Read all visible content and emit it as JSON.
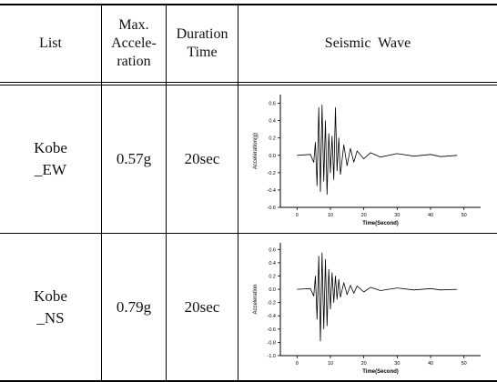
{
  "table": {
    "headers": {
      "list": "List",
      "max_accel": [
        "Max.",
        "Accele-",
        "ration"
      ],
      "duration": [
        "Duration",
        "Time"
      ],
      "wave": "Seismic Wave"
    },
    "rows": [
      {
        "name": [
          "Kobe",
          "_EW"
        ],
        "max_accel": "0.57g",
        "duration": "20sec"
      },
      {
        "name": [
          "Kobe",
          "_NS"
        ],
        "max_accel": "0.79g",
        "duration": "20sec"
      }
    ]
  },
  "chart_data": [
    {
      "type": "line",
      "xlabel": "Time(Second)",
      "ylabel": "Acceleration(g)",
      "xlim": [
        -5,
        55
      ],
      "ylim": [
        -0.6,
        0.7
      ],
      "xticks": [
        0,
        10,
        20,
        30,
        40,
        50
      ],
      "yticks": [
        0.6,
        0.4,
        0.2,
        0.0,
        -0.2,
        -0.4,
        -0.6
      ],
      "ytick_labels": [
        "0.6",
        "0.4",
        "0.2",
        "0.0",
        "-0.2",
        "-0.4",
        "-0.6"
      ],
      "x": [
        0,
        4,
        5,
        5.5,
        6,
        6.5,
        7,
        7.5,
        8,
        8.5,
        9,
        9.5,
        10,
        10.5,
        11,
        11.5,
        12,
        12.5,
        13,
        14,
        15,
        16,
        17,
        18,
        20,
        22,
        25,
        30,
        35,
        40,
        43,
        48
      ],
      "y": [
        0.0,
        0.01,
        -0.08,
        0.15,
        -0.35,
        0.55,
        -0.42,
        0.58,
        -0.3,
        0.4,
        -0.45,
        0.25,
        -0.2,
        0.22,
        -0.28,
        0.55,
        -0.18,
        0.2,
        -0.22,
        0.12,
        -0.12,
        0.08,
        -0.08,
        0.05,
        -0.04,
        0.03,
        -0.02,
        0.02,
        -0.01,
        0.01,
        -0.015,
        0.0
      ]
    },
    {
      "type": "line",
      "xlabel": "Time(Second)",
      "ylabel": "Acceleration",
      "xlim": [
        -5,
        55
      ],
      "ylim": [
        -1.0,
        0.7
      ],
      "xticks": [
        0,
        10,
        20,
        30,
        40,
        50
      ],
      "yticks": [
        0.6,
        0.4,
        0.2,
        0.0,
        -0.2,
        -0.4,
        -0.6,
        -0.8,
        -1.0
      ],
      "ytick_labels": [
        "0.6",
        "0.4",
        "0.2",
        "0.0",
        "-0.2",
        "-0.4",
        "-0.6",
        "-0.8",
        "-1.0"
      ],
      "x": [
        0,
        4,
        5,
        5.5,
        6,
        6.5,
        7,
        7.5,
        8,
        8.5,
        9,
        9.5,
        10,
        10.5,
        11,
        11.5,
        12,
        12.5,
        13,
        14,
        15,
        16,
        17,
        18,
        20,
        22,
        25,
        30,
        35,
        40,
        43,
        48
      ],
      "y": [
        0.0,
        0.01,
        -0.1,
        0.2,
        -0.45,
        0.5,
        -0.78,
        0.55,
        -0.6,
        0.45,
        -0.55,
        0.3,
        -0.3,
        0.25,
        -0.2,
        0.2,
        -0.15,
        0.15,
        -0.12,
        0.1,
        -0.08,
        0.06,
        -0.06,
        0.05,
        -0.04,
        0.03,
        -0.02,
        0.02,
        -0.01,
        0.01,
        -0.01,
        0.0
      ]
    }
  ]
}
